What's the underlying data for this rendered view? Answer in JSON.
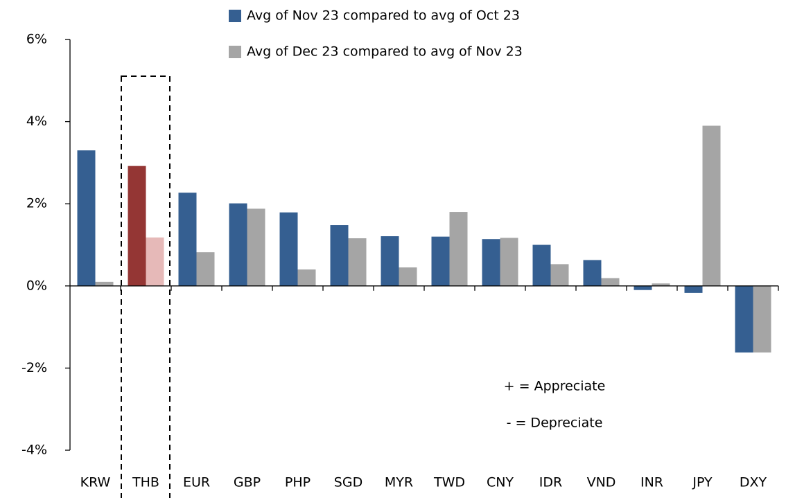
{
  "chart_data": {
    "type": "bar",
    "categories": [
      "KRW",
      "THB",
      "EUR",
      "GBP",
      "PHP",
      "SGD",
      "MYR",
      "TWD",
      "CNY",
      "IDR",
      "VND",
      "INR",
      "JPY",
      "DXY"
    ],
    "series": [
      {
        "name": "Avg of Nov 23 compared to avg of Oct 23",
        "color": "#355f91",
        "colors": [
          "#355f91",
          "#943634",
          "#355f91",
          "#355f91",
          "#355f91",
          "#355f91",
          "#355f91",
          "#355f91",
          "#355f91",
          "#355f91",
          "#355f91",
          "#355f91",
          "#355f91",
          "#355f91"
        ],
        "values": [
          3.3,
          2.92,
          2.27,
          2.01,
          1.79,
          1.48,
          1.21,
          1.2,
          1.14,
          1.0,
          0.63,
          -0.1,
          -0.17,
          -1.62
        ]
      },
      {
        "name": "Avg of Dec 23 compared to avg of Nov 23",
        "color": "#a5a5a5",
        "colors": [
          "#a5a5a5",
          "#e6b9b8",
          "#a5a5a5",
          "#a5a5a5",
          "#a5a5a5",
          "#a5a5a5",
          "#a5a5a5",
          "#a5a5a5",
          "#a5a5a5",
          "#a5a5a5",
          "#a5a5a5",
          "#a5a5a5",
          "#a5a5a5",
          "#a5a5a5"
        ],
        "values": [
          0.1,
          1.18,
          0.82,
          1.88,
          0.4,
          1.16,
          0.45,
          1.8,
          1.17,
          0.53,
          0.19,
          0.06,
          3.9,
          -1.62
        ]
      }
    ],
    "ylim": [
      -4,
      6
    ],
    "yticks": [
      {
        "value": -4,
        "label": "-4%"
      },
      {
        "value": -2,
        "label": "-2%"
      },
      {
        "value": 0,
        "label": "0%"
      },
      {
        "value": 2,
        "label": "2%"
      },
      {
        "value": 4,
        "label": "4%"
      },
      {
        "value": 6,
        "label": "6%"
      }
    ],
    "annotations": [
      "+ = Appreciate",
      "- = Depreciate"
    ],
    "grid": false
  }
}
